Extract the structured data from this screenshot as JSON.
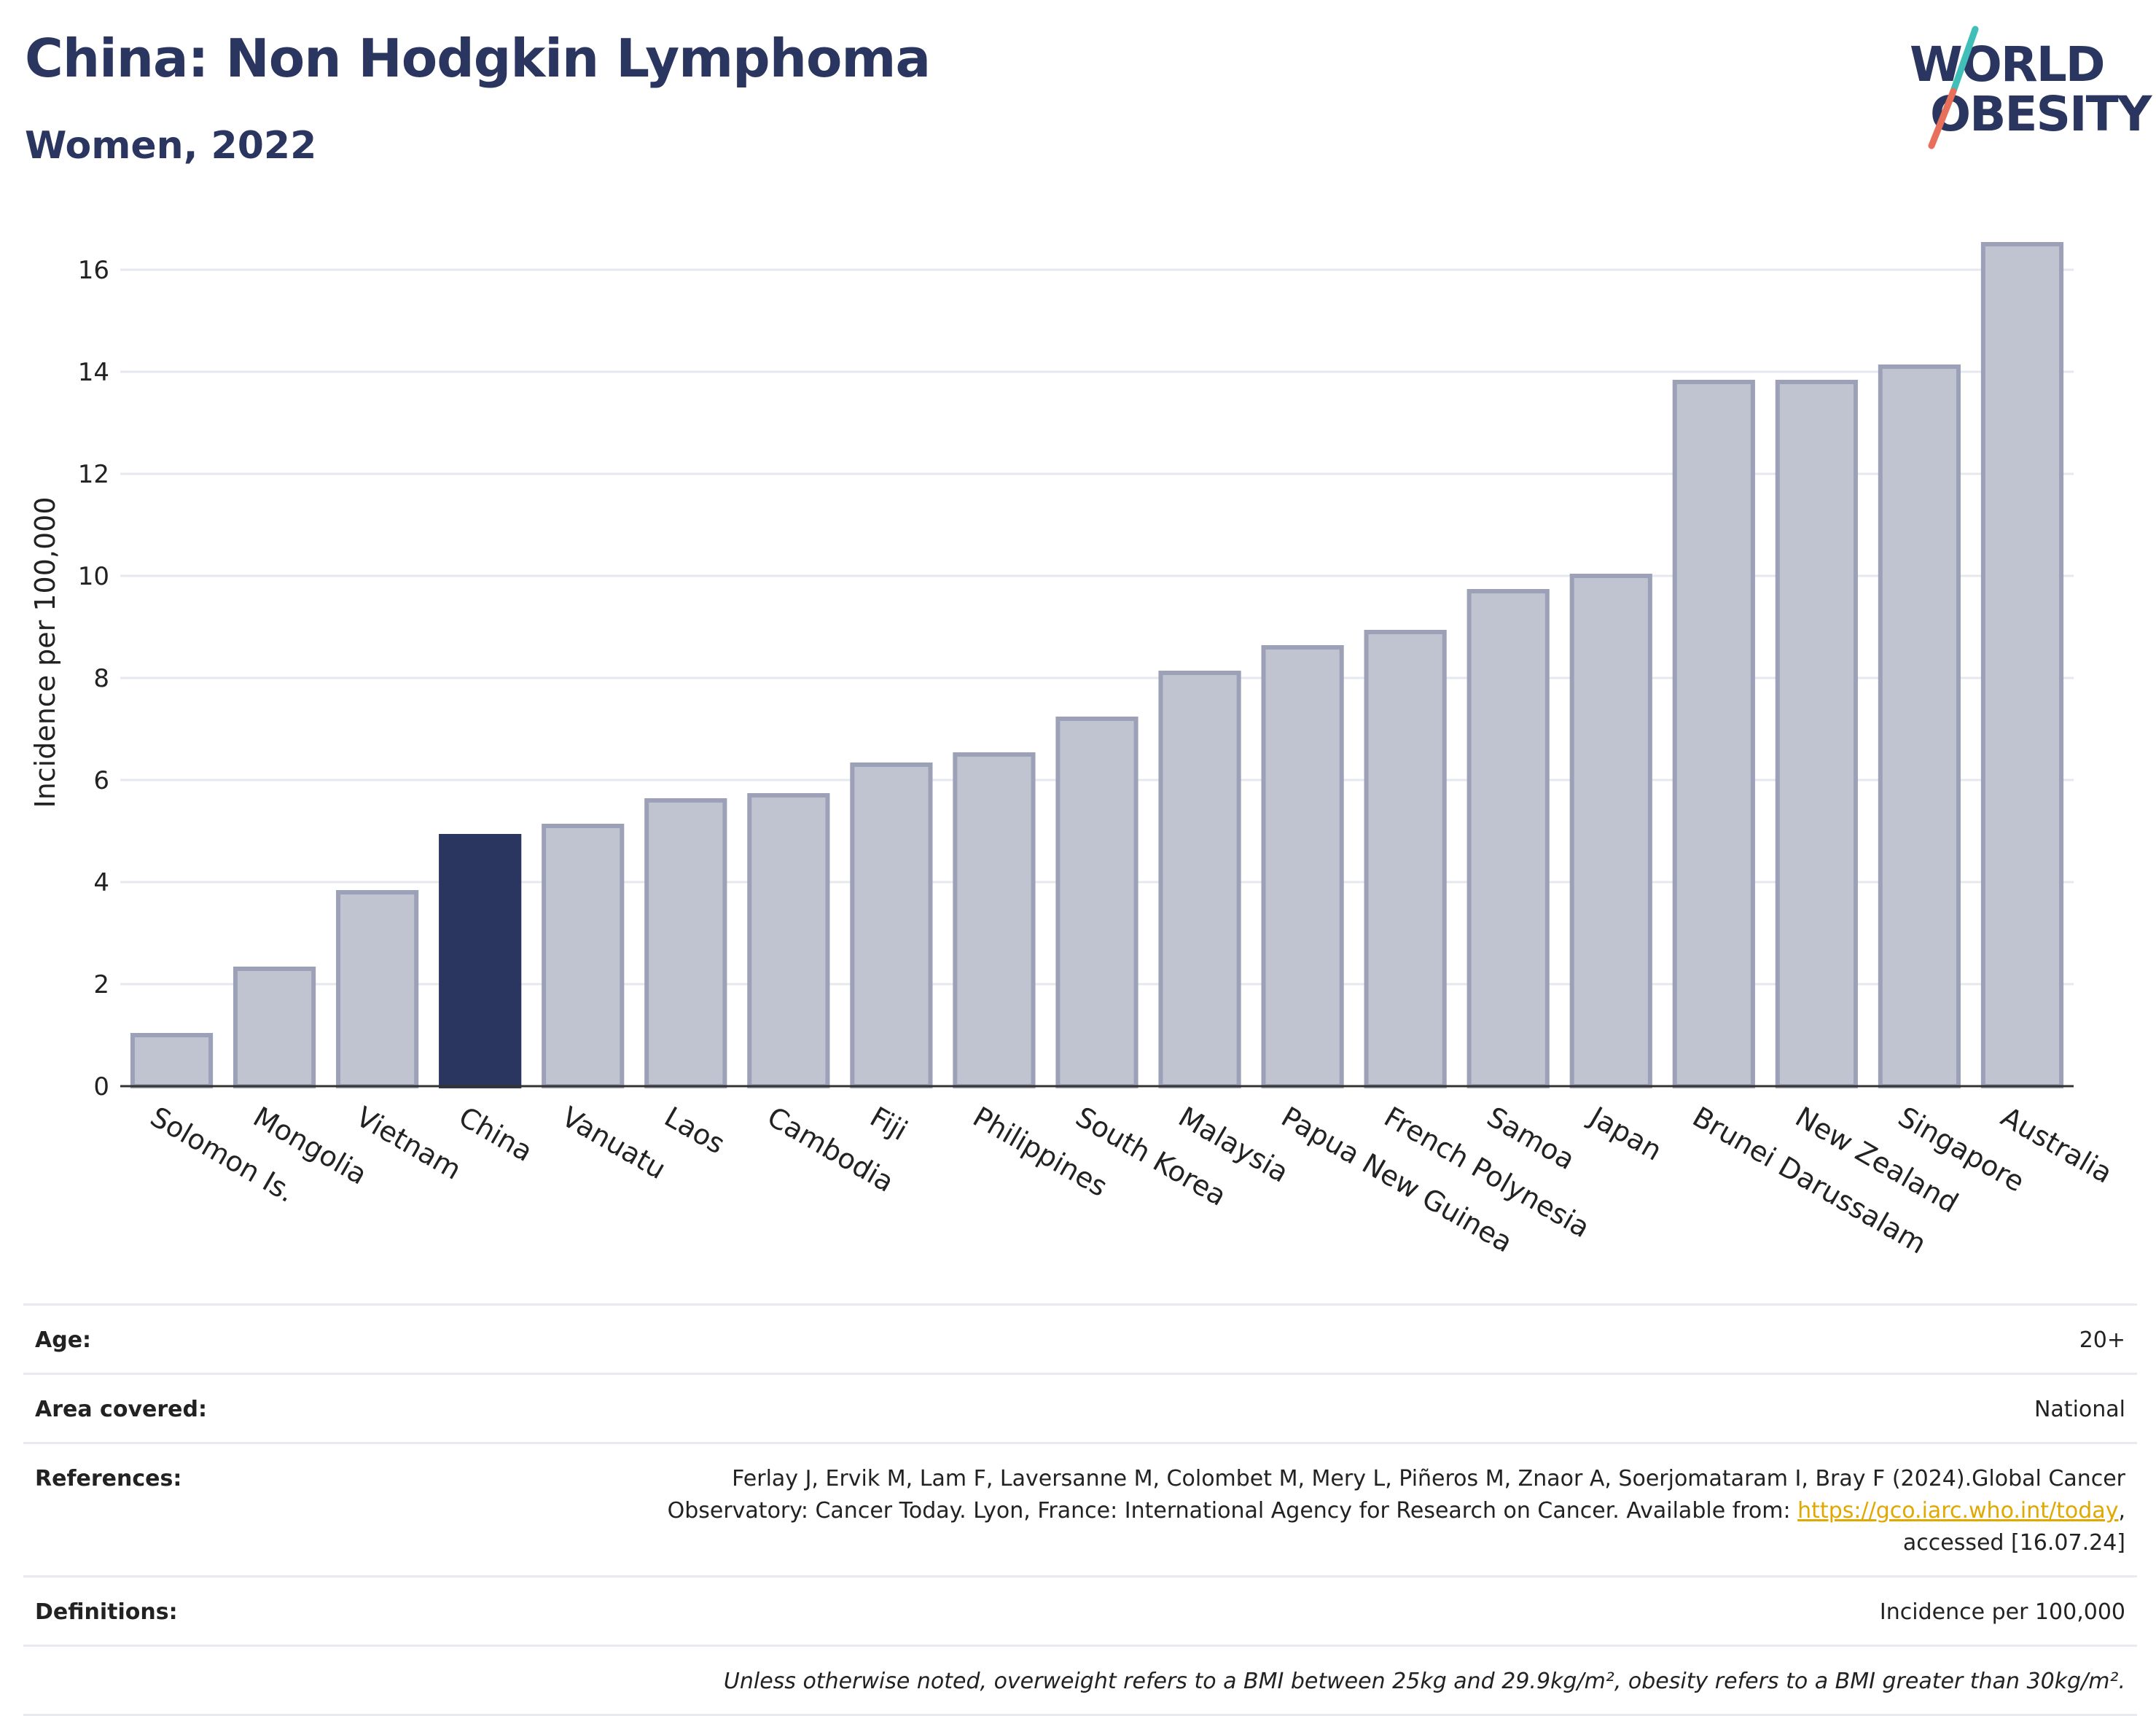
{
  "header": {
    "title": "China: Non Hodgkin Lymphoma",
    "subtitle": "Women, 2022"
  },
  "logo": {
    "line1": "WORLD",
    "line2": "OBESITY",
    "accent_colors": [
      "#3fbfb8",
      "#e8705a"
    ]
  },
  "colors": {
    "highlight_bar": "#2a3560",
    "bar_fill": "#c0c3d0",
    "bar_stroke": "#9ca1b8",
    "axis_text": "#222222",
    "grid": "#e6e8ef"
  },
  "chart_data": {
    "type": "bar",
    "title": "China: Non Hodgkin Lymphoma",
    "subtitle": "Women, 2022",
    "ylabel": "Incidence per 100,000",
    "xlabel": "",
    "ylim": [
      0,
      17
    ],
    "yticks": [
      0,
      2,
      4,
      6,
      8,
      10,
      12,
      14,
      16
    ],
    "grid": true,
    "highlight": "China",
    "categories": [
      "Solomon Is.",
      "Mongolia",
      "Vietnam",
      "China",
      "Vanuatu",
      "Laos",
      "Cambodia",
      "Fiji",
      "Philippines",
      "South Korea",
      "Malaysia",
      "Papua New Guinea",
      "French Polynesia",
      "Samoa",
      "Japan",
      "Brunei Darussalam",
      "New Zealand",
      "Singapore",
      "Australia"
    ],
    "values": [
      1.0,
      2.3,
      3.8,
      4.9,
      5.1,
      5.6,
      5.7,
      6.3,
      6.5,
      7.2,
      8.1,
      8.6,
      8.9,
      9.7,
      10.0,
      13.8,
      13.8,
      14.1,
      16.5
    ]
  },
  "info": {
    "age_label": "Age:",
    "age_value": "20+",
    "area_label": "Area covered:",
    "area_value": "National",
    "references_label": "References:",
    "references_text_line1": "Ferlay J, Ervik M, Lam F, Laversanne M, Colombet M, Mery L, Piñeros M, Znaor A, Soerjomataram I, Bray F (2024).Global Cancer",
    "references_text_line2": "Observatory: Cancer Today. Lyon, France: International Agency for Research on Cancer. Available from: ",
    "references_link": "https://gco.iarc.who.int/today",
    "references_text_line3": "accessed [16.07.24]",
    "definitions_label": "Definitions:",
    "definitions_value": "Incidence per 100,000",
    "note": "Unless otherwise noted, overweight refers to a BMI between 25kg and 29.9kg/m², obesity refers to a BMI greater than 30kg/m²."
  }
}
